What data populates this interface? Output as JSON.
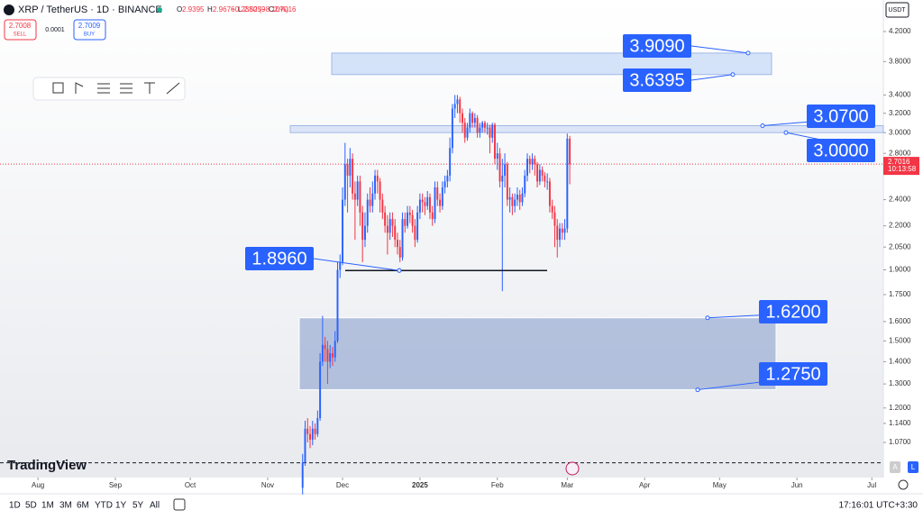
{
  "header": {
    "symbol": "XRP / TetherUS · 1D · BINANCE",
    "ohlc": [
      {
        "key": "O",
        "value": "2.9395"
      },
      {
        "key": "H",
        "value": "2.9676"
      },
      {
        "key": "L",
        "value": "2.5259"
      },
      {
        "key": "C",
        "value": "2.7016"
      }
    ],
    "change": "−0.2380 (−8.10%)",
    "sell": {
      "price": "2.7008",
      "label": "SELL"
    },
    "spread": "0.0001",
    "buy": {
      "price": "2.7009",
      "label": "BUY"
    },
    "currency": "USDT",
    "countdown": "10:13:58",
    "logo": "TradingView",
    "scale_buttons": [
      "A",
      "L"
    ]
  },
  "chart_data": {
    "type": "candlestick",
    "log_scale": true,
    "up_color": "#2962ff",
    "down_color": "#f23645",
    "xlim": [
      -15.2,
      338.6
    ],
    "xticks": [
      {
        "value": 0,
        "label": "Aug"
      },
      {
        "value": 31,
        "label": "Sep"
      },
      {
        "value": 61,
        "label": "Oct"
      },
      {
        "value": 92,
        "label": "Nov"
      },
      {
        "value": 122,
        "label": "Dec"
      },
      {
        "value": 153,
        "label": "2025"
      },
      {
        "value": 184,
        "label": "Feb"
      },
      {
        "value": 212,
        "label": "Mar"
      },
      {
        "value": 243,
        "label": "Apr"
      },
      {
        "value": 273,
        "label": "May"
      },
      {
        "value": 304,
        "label": "Jun"
      },
      {
        "value": 334,
        "label": "Jul"
      }
    ],
    "ylim": [
      0.952,
      4.664
    ],
    "yticks": [
      {
        "value": 4.2,
        "label": "4.2000"
      },
      {
        "value": 3.8,
        "label": "3.8000"
      },
      {
        "value": 3.4,
        "label": "3.4000"
      },
      {
        "value": 3.2,
        "label": "3.2000"
      },
      {
        "value": 3,
        "label": "3.0000"
      },
      {
        "value": 2.8,
        "label": "2.8000"
      },
      {
        "value": 2.4,
        "label": "2.4000"
      },
      {
        "value": 2.2,
        "label": "2.2000"
      },
      {
        "value": 2.05,
        "label": "2.0500"
      },
      {
        "value": 1.9,
        "label": "1.9000"
      },
      {
        "value": 1.75,
        "label": "1.7500"
      },
      {
        "value": 1.6,
        "label": "1.6000"
      },
      {
        "value": 1.5,
        "label": "1.5000"
      },
      {
        "value": 1.4,
        "label": "1.4000"
      },
      {
        "value": 1.3,
        "label": "1.3000"
      },
      {
        "value": 1.2,
        "label": "1.2000"
      },
      {
        "value": 1.14,
        "label": "1.1400"
      },
      {
        "value": 1.07,
        "label": "1.0700"
      }
    ],
    "x": [
      106,
      107,
      108,
      109,
      110,
      111,
      112,
      113,
      114,
      115,
      116,
      117,
      118,
      119,
      120,
      121,
      122,
      123,
      124,
      125,
      126,
      127,
      128,
      129,
      130,
      131,
      132,
      133,
      134,
      135,
      136,
      137,
      138,
      139,
      140,
      141,
      142,
      143,
      144,
      145,
      146,
      147,
      148,
      149,
      150,
      151,
      152,
      153,
      154,
      155,
      156,
      157,
      158,
      159,
      160,
      161,
      162,
      163,
      164,
      165,
      166,
      167,
      168,
      169,
      170,
      171,
      172,
      173,
      174,
      175,
      176,
      177,
      178,
      179,
      180,
      181,
      182,
      183,
      184,
      185,
      186,
      187,
      188,
      189,
      190,
      191,
      192,
      193,
      194,
      195,
      196,
      197,
      198,
      199,
      200,
      201,
      202,
      203,
      204,
      205,
      206,
      207,
      208,
      209,
      210,
      211,
      212,
      213
    ],
    "open": [
      0.92,
      1.0,
      1.12,
      1.1,
      1.08,
      1.12,
      1.1,
      1.16,
      1.4,
      1.48,
      1.46,
      1.4,
      1.44,
      1.42,
      1.5,
      1.9,
      1.95,
      2.4,
      2.7,
      2.6,
      2.75,
      2.45,
      2.4,
      2.55,
      2.3,
      2.1,
      2.2,
      2.4,
      2.35,
      2.45,
      2.6,
      2.55,
      2.4,
      2.3,
      2.2,
      2.15,
      2.25,
      2.2,
      2.1,
      2.05,
      1.98,
      2.25,
      2.2,
      2.3,
      2.28,
      2.2,
      2.1,
      2.3,
      2.4,
      2.38,
      2.35,
      2.42,
      2.3,
      2.25,
      2.5,
      2.4,
      2.35,
      2.5,
      2.55,
      2.6,
      2.85,
      3.25,
      3.3,
      3.35,
      3.2,
      3.1,
      2.95,
      3.05,
      3.2,
      3.1,
      3.15,
      3.0,
      3.05,
      3.1,
      3.05,
      3.05,
      2.95,
      3.08,
      2.75,
      2.8,
      2.55,
      2.6,
      2.7,
      2.4,
      2.42,
      2.35,
      2.4,
      2.44,
      2.38,
      2.45,
      2.6,
      2.75,
      2.7,
      2.75,
      2.7,
      2.55,
      2.65,
      2.6,
      2.55,
      2.55,
      2.35,
      2.3,
      2.2,
      2.1,
      2.18,
      2.15,
      2.18,
      2.9395
    ],
    "high": [
      1.03,
      1.15,
      1.16,
      1.13,
      1.15,
      1.14,
      1.19,
      1.44,
      1.63,
      1.52,
      1.5,
      1.48,
      1.47,
      1.55,
      1.95,
      2.0,
      2.5,
      2.9,
      2.75,
      2.85,
      2.8,
      2.55,
      2.6,
      2.6,
      2.35,
      2.3,
      2.45,
      2.5,
      2.55,
      2.65,
      2.65,
      2.58,
      2.45,
      2.35,
      2.28,
      2.3,
      2.3,
      2.25,
      2.15,
      2.1,
      2.3,
      2.3,
      2.35,
      2.35,
      2.32,
      2.25,
      2.35,
      2.45,
      2.45,
      2.42,
      2.47,
      2.45,
      2.35,
      2.55,
      2.55,
      2.45,
      2.55,
      2.6,
      2.65,
      2.95,
      3.3,
      3.4,
      3.4,
      3.38,
      3.25,
      3.15,
      3.1,
      3.25,
      3.22,
      3.2,
      3.18,
      3.1,
      3.12,
      3.12,
      3.1,
      3.08,
      3.1,
      3.1,
      2.9,
      2.85,
      2.75,
      2.8,
      2.72,
      2.5,
      2.45,
      2.45,
      2.5,
      2.48,
      2.5,
      2.65,
      2.8,
      2.78,
      2.8,
      2.78,
      2.72,
      2.7,
      2.68,
      2.63,
      2.62,
      2.58,
      2.4,
      2.35,
      2.25,
      2.22,
      2.22,
      2.25,
      2.99,
      2.9676
    ],
    "low": [
      0.9,
      0.99,
      1.07,
      1.05,
      1.06,
      1.08,
      1.09,
      1.15,
      1.38,
      1.4,
      1.3,
      1.37,
      1.38,
      1.4,
      1.49,
      1.85,
      1.93,
      2.35,
      2.3,
      2.5,
      2.4,
      2.1,
      2.35,
      2.2,
      1.95,
      2.05,
      2.15,
      2.3,
      2.3,
      2.4,
      2.45,
      2.3,
      2.25,
      2.15,
      2.0,
      2.1,
      2.12,
      2.05,
      2.0,
      1.95,
      1.96,
      2.15,
      2.18,
      2.22,
      2.15,
      2.05,
      2.08,
      2.25,
      2.3,
      2.28,
      2.32,
      2.25,
      2.2,
      2.22,
      2.35,
      2.3,
      2.32,
      2.45,
      2.5,
      2.55,
      2.8,
      3.15,
      3.2,
      3.1,
      3.0,
      2.9,
      2.92,
      3.0,
      3.05,
      3.05,
      2.95,
      2.95,
      3.0,
      3.0,
      2.98,
      2.8,
      2.9,
      2.7,
      2.65,
      2.5,
      1.77,
      2.5,
      2.35,
      2.3,
      2.28,
      2.3,
      2.35,
      2.32,
      2.35,
      2.42,
      2.55,
      2.62,
      2.65,
      2.6,
      2.5,
      2.52,
      2.55,
      2.5,
      2.48,
      2.3,
      2.25,
      2.05,
      1.98,
      2.05,
      2.1,
      2.1,
      2.15,
      2.5259
    ],
    "close": [
      1.0,
      1.12,
      1.1,
      1.08,
      1.12,
      1.1,
      1.16,
      1.4,
      1.48,
      1.46,
      1.4,
      1.44,
      1.42,
      1.5,
      1.9,
      1.95,
      2.4,
      2.7,
      2.6,
      2.75,
      2.45,
      2.4,
      2.55,
      2.3,
      2.1,
      2.2,
      2.4,
      2.35,
      2.45,
      2.6,
      2.55,
      2.4,
      2.3,
      2.2,
      2.15,
      2.25,
      2.2,
      2.1,
      2.05,
      1.98,
      2.25,
      2.2,
      2.3,
      2.28,
      2.2,
      2.1,
      2.3,
      2.4,
      2.38,
      2.35,
      2.42,
      2.3,
      2.25,
      2.5,
      2.4,
      2.35,
      2.5,
      2.55,
      2.6,
      2.85,
      3.25,
      3.3,
      3.35,
      3.2,
      3.1,
      2.95,
      3.05,
      3.2,
      3.1,
      3.15,
      3.0,
      3.05,
      3.1,
      3.05,
      3.05,
      2.95,
      3.08,
      2.75,
      2.8,
      2.55,
      2.6,
      2.7,
      2.4,
      2.42,
      2.35,
      2.4,
      2.44,
      2.38,
      2.45,
      2.6,
      2.75,
      2.7,
      2.75,
      2.7,
      2.55,
      2.65,
      2.6,
      2.55,
      2.55,
      2.35,
      2.3,
      2.2,
      2.1,
      2.18,
      2.15,
      2.18,
      2.9395,
      2.7016
    ],
    "zones": [
      {
        "top": {
          "value": 3.909,
          "label": "3.9090"
        },
        "bottom": {
          "value": 3.6395,
          "label": "3.6395"
        }
      },
      {
        "top": {
          "value": 3.07,
          "label": "3.0700"
        },
        "bottom": {
          "value": 3.0,
          "label": "3.0000"
        }
      },
      {
        "top": {
          "value": 1.62,
          "label": "1.6200"
        },
        "bottom": {
          "value": 1.275,
          "label": "1.2750"
        }
      }
    ],
    "level": {
      "value": 1.896,
      "label": "1.8960"
    },
    "dashed_level": 1.0
  },
  "footer": {
    "ranges": [
      "1D",
      "5D",
      "1M",
      "3M",
      "6M",
      "YTD",
      "1Y",
      "5Y",
      "All"
    ],
    "time": "17:16:01 UTC+3:30"
  }
}
